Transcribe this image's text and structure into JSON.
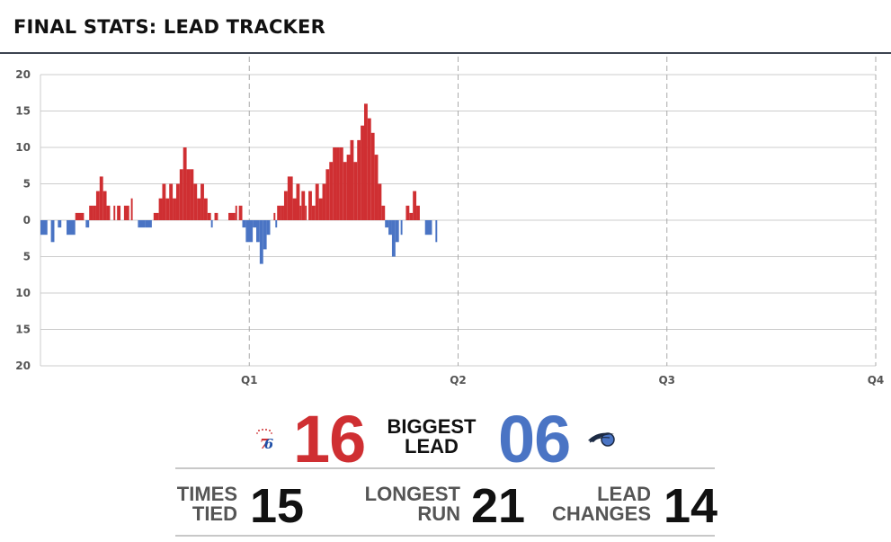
{
  "header": {
    "title": "FINAL STATS: LEAD TRACKER"
  },
  "colors": {
    "home": "#cf2f32",
    "away": "#4a74c4",
    "grid": "#cccccc",
    "axis": "#555555"
  },
  "chart_data": {
    "type": "bar",
    "title": "FINAL STATS: LEAD TRACKER",
    "y_ticks": [
      "20",
      "15",
      "10",
      "5",
      "0",
      "5",
      "10",
      "15",
      "20"
    ],
    "x_tick_labels": [
      "Q1",
      "Q2",
      "Q3",
      "Q4"
    ],
    "ylim": [
      -20,
      20
    ],
    "xlim": [
      0,
      48
    ],
    "x_unit": "game minutes",
    "grid": "horizontal lines + dashed quarter lines",
    "series": [
      {
        "values": [
          [
            0.0,
            0.4,
            -2
          ],
          [
            0.6,
            0.8,
            -3
          ],
          [
            1.0,
            1.2,
            -1
          ],
          [
            1.5,
            2.0,
            -2
          ],
          [
            2.0,
            2.5,
            1
          ],
          [
            2.6,
            2.8,
            -1
          ],
          [
            2.8,
            3.0,
            2
          ],
          [
            3.0,
            3.2,
            2
          ],
          [
            3.2,
            3.4,
            4
          ],
          [
            3.4,
            3.6,
            6
          ],
          [
            3.6,
            3.8,
            4
          ],
          [
            3.8,
            4.0,
            2
          ],
          [
            4.2,
            4.3,
            2
          ],
          [
            4.4,
            4.6,
            2
          ],
          [
            4.8,
            5.1,
            2
          ],
          [
            5.2,
            5.3,
            3
          ],
          [
            5.6,
            6.0,
            -1
          ],
          [
            6.0,
            6.2,
            -1
          ],
          [
            6.2,
            6.4,
            -1
          ],
          [
            6.5,
            6.8,
            1
          ],
          [
            6.8,
            7.0,
            3
          ],
          [
            7.0,
            7.2,
            5
          ],
          [
            7.2,
            7.4,
            3
          ],
          [
            7.4,
            7.6,
            5
          ],
          [
            7.6,
            7.8,
            3
          ],
          [
            7.8,
            8.0,
            5
          ],
          [
            8.0,
            8.2,
            7
          ],
          [
            8.2,
            8.4,
            10
          ],
          [
            8.4,
            8.6,
            7
          ],
          [
            8.6,
            8.8,
            7
          ],
          [
            8.8,
            9.0,
            5
          ],
          [
            9.0,
            9.2,
            3
          ],
          [
            9.2,
            9.4,
            5
          ],
          [
            9.4,
            9.6,
            3
          ],
          [
            9.6,
            9.8,
            1
          ],
          [
            9.8,
            9.9,
            -1
          ],
          [
            10.0,
            10.2,
            1
          ],
          [
            10.8,
            11.2,
            1
          ],
          [
            11.2,
            11.3,
            2
          ],
          [
            11.4,
            11.6,
            2
          ],
          [
            11.6,
            11.8,
            -1
          ],
          [
            11.8,
            12.2,
            -3
          ],
          [
            12.2,
            12.4,
            -1
          ],
          [
            12.4,
            12.6,
            -3
          ],
          [
            12.6,
            12.8,
            -6
          ],
          [
            12.8,
            13.0,
            -4
          ],
          [
            13.0,
            13.2,
            -2
          ],
          [
            13.4,
            13.5,
            1
          ],
          [
            13.5,
            13.6,
            -1
          ],
          [
            13.6,
            13.8,
            2
          ],
          [
            13.8,
            14.0,
            2
          ],
          [
            14.0,
            14.2,
            4
          ],
          [
            14.2,
            14.5,
            6
          ],
          [
            14.5,
            14.7,
            3
          ],
          [
            14.7,
            14.9,
            5
          ],
          [
            14.9,
            15.0,
            2
          ],
          [
            15.0,
            15.2,
            4
          ],
          [
            15.2,
            15.3,
            2
          ],
          [
            15.4,
            15.6,
            4
          ],
          [
            15.6,
            15.8,
            2
          ],
          [
            15.8,
            16.0,
            5
          ],
          [
            16.0,
            16.2,
            3
          ],
          [
            16.2,
            16.4,
            5
          ],
          [
            16.4,
            16.6,
            7
          ],
          [
            16.6,
            16.8,
            8
          ],
          [
            16.8,
            17.0,
            10
          ],
          [
            17.0,
            17.2,
            10
          ],
          [
            17.2,
            17.4,
            10
          ],
          [
            17.4,
            17.6,
            8
          ],
          [
            17.6,
            17.8,
            9
          ],
          [
            17.8,
            18.0,
            11
          ],
          [
            18.0,
            18.2,
            8
          ],
          [
            18.2,
            18.4,
            11
          ],
          [
            18.4,
            18.6,
            13
          ],
          [
            18.6,
            18.8,
            16
          ],
          [
            18.8,
            19.0,
            14
          ],
          [
            19.0,
            19.2,
            12
          ],
          [
            19.2,
            19.4,
            9
          ],
          [
            19.4,
            19.6,
            5
          ],
          [
            19.6,
            19.8,
            2
          ],
          [
            19.8,
            20.0,
            -1
          ],
          [
            20.0,
            20.2,
            -2
          ],
          [
            20.2,
            20.4,
            -5
          ],
          [
            20.4,
            20.6,
            -3
          ],
          [
            20.7,
            20.8,
            -2
          ],
          [
            21.0,
            21.2,
            2
          ],
          [
            21.2,
            21.4,
            1
          ],
          [
            21.4,
            21.6,
            4
          ],
          [
            21.6,
            21.8,
            2
          ],
          [
            22.1,
            22.5,
            -2
          ],
          [
            22.7,
            22.8,
            -3
          ]
        ]
      }
    ]
  },
  "stats": {
    "biggest_lead": {
      "label_line1": "BIGGEST",
      "label_line2": "LEAD",
      "home_value": "16",
      "away_value": "06"
    },
    "times_tied": {
      "label_line1": "TIMES",
      "label_line2": "TIED",
      "value": "15"
    },
    "longest_run": {
      "label_line1": "LONGEST",
      "label_line2": "RUN",
      "value": "21"
    },
    "lead_changes": {
      "label_line1": "LEAD",
      "label_line2": "CHANGES",
      "value": "14"
    }
  },
  "logos": {
    "home": "76ers-logo-icon",
    "away": "magic-logo-icon"
  }
}
